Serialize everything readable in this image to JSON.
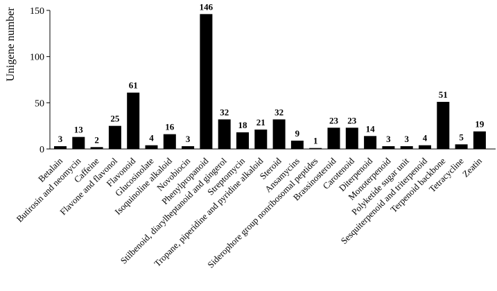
{
  "chart_data": {
    "type": "bar",
    "ylabel": "Unigene number",
    "ylim": [
      0,
      150
    ],
    "yticks": [
      "0",
      "50",
      "100",
      "150"
    ],
    "grid": false,
    "bar_color": "#000000",
    "categories": [
      "Betalain",
      "Butirosin and neomycin",
      "Caffeine",
      "Flavone and flavonol",
      "Flavonoid",
      "Glucosinolate",
      "Isoquinoline alkaloid",
      "Novobiocin",
      "Phenylpropanoid",
      "Stilbenoid, diarylheptanoid and gingerol",
      "Streptomycin",
      "Tropane, piperidine and pyridine alkaloid",
      "Steroid",
      "Ansamycins",
      "Siderophore group nonribosomal peptides",
      "Brassinosteroid",
      "Carotenoid",
      "Diterpenoid",
      "Monoterpenoid",
      "Polyketide sugar unit",
      "Sesquiterpenoid and triterpenoid",
      "Terpenoid backbone",
      "Tetracycline",
      "Zeatin"
    ],
    "values": [
      3,
      13,
      2,
      25,
      61,
      4,
      16,
      3,
      146,
      32,
      18,
      21,
      32,
      9,
      1,
      23,
      23,
      14,
      3,
      3,
      4,
      51,
      5,
      19
    ],
    "value_labels": [
      "3",
      "13",
      "2",
      "25",
      "61",
      "4",
      "16",
      "3",
      "146",
      "32",
      "18",
      "21",
      "32",
      "9",
      "1",
      "23",
      "23",
      "14",
      "3",
      "3",
      "4",
      "51",
      "5",
      "19"
    ]
  }
}
